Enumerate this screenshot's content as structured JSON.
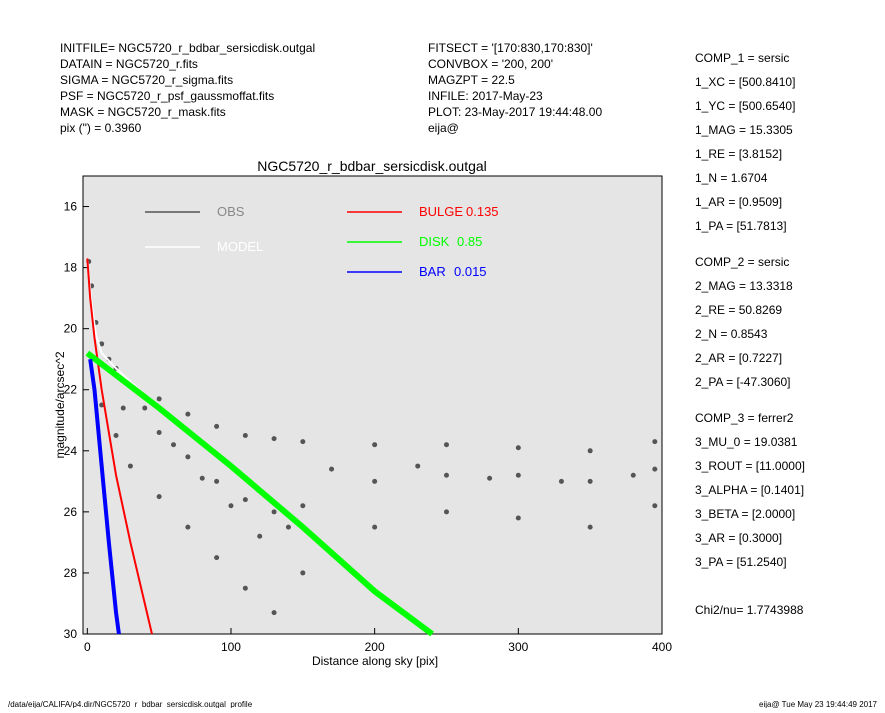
{
  "header": {
    "left": [
      "INITFILE= NGC5720_r_bdbar_sersicdisk.outgal",
      "DATAIN  = NGC5720_r.fits",
      "SIGMA   = NGC5720_r_sigma.fits",
      "PSF     = NGC5720_r_psf_gaussmoffat.fits",
      "MASK    = NGC5720_r_mask.fits",
      "pix (\") =  0.3960"
    ],
    "middle": [
      "FITSECT = '[170:830,170:830]'",
      "CONVBOX = '200, 200'",
      "MAGZPT  =              22.5",
      "INFILE: 2017-May-23",
      "PLOT: 23-May-2017 19:44:48.00",
      "eija@"
    ]
  },
  "params": [
    "COMP_1  = sersic",
    "1_XC    = [500.8410]",
    "1_YC    = [500.6540]",
    "1_MAG   = 15.3305",
    "1_RE    = [3.8152]",
    "1_N     = 1.6704",
    "1_AR    = [0.9509]",
    "1_PA    = [51.7813]",
    "COMP_2  = sersic",
    "2_MAG   = 13.3318",
    "2_RE    = 50.8269",
    "2_N     = 0.8543",
    "2_AR    = [0.7227]",
    "2_PA    = [-47.3060]",
    "COMP_3  = ferrer2",
    "3_MU_0  = 19.0381",
    "3_ROUT  = [11.0000]",
    "3_ALPHA = [0.1401]",
    "3_BETA  = [2.0000]",
    "3_AR    = [0.3000]",
    "3_PA    = [51.2540]",
    "Chi2/nu=      1.7743988"
  ],
  "footer": {
    "left": "/data/eija/CALIFA/p4.dir/NGC5720_r_bdbar_sersicdisk.outgal_profile",
    "right": "eija@  Tue May 23 19:44:49 2017"
  },
  "chart_data": {
    "type": "scatter",
    "title": "NGC5720_r_bdbar_sersicdisk.outgal",
    "x_label": "Distance along sky [pix]",
    "y_label": "magnitude/arcsec^2",
    "xlim": [
      -3,
      400
    ],
    "ylim": [
      30,
      15
    ],
    "xticks": [
      0,
      100,
      200,
      300,
      400
    ],
    "yticks": [
      16,
      18,
      20,
      22,
      24,
      26,
      28,
      30
    ],
    "series": [
      {
        "name": "OBS",
        "color": "#555555",
        "kind": "points",
        "x": [
          1,
          3,
          6,
          10,
          10,
          15,
          20,
          20,
          25,
          30,
          30,
          40,
          50,
          50,
          50,
          60,
          70,
          70,
          70,
          80,
          90,
          90,
          90,
          100,
          110,
          110,
          110,
          120,
          130,
          130,
          130,
          140,
          150,
          150,
          150,
          170,
          200,
          200,
          200,
          230,
          250,
          250,
          250,
          280,
          300,
          300,
          300,
          330,
          350,
          350,
          350,
          380,
          395,
          395,
          395
        ],
        "values": [
          17.8,
          18.6,
          19.8,
          20.5,
          22.5,
          21,
          21.3,
          23.5,
          22.6,
          21.8,
          24.5,
          22.6,
          22.3,
          23.4,
          25.5,
          23.8,
          22.8,
          24.2,
          26.5,
          24.9,
          23.2,
          25,
          27.5,
          25.8,
          23.5,
          25.6,
          28.5,
          26.8,
          23.6,
          26,
          29.3,
          26.5,
          23.7,
          25.8,
          28,
          24.6,
          23.8,
          25,
          26.5,
          24.5,
          23.8,
          24.8,
          26,
          24.9,
          23.9,
          24.8,
          26.2,
          25,
          24,
          25,
          26.5,
          24.8,
          23.7,
          24.6,
          25.8
        ]
      },
      {
        "name": "MODEL",
        "color": "#ffffff",
        "kind": "line",
        "x": [
          0,
          3,
          6,
          10,
          20,
          50,
          100,
          150,
          200,
          240
        ],
        "values": [
          17.7,
          19.2,
          20.2,
          20.8,
          21.3,
          22.6,
          24.5,
          26.5,
          28.6,
          30
        ]
      },
      {
        "name": "BULGE",
        "fraction": 0.135,
        "color": "#ff0000",
        "kind": "line",
        "x": [
          0,
          2,
          5,
          10,
          20,
          30,
          40,
          45
        ],
        "values": [
          17.7,
          19,
          20.3,
          22,
          24.8,
          27,
          29,
          30
        ]
      },
      {
        "name": "DISK",
        "fraction": 0.85,
        "color": "#00ff00",
        "kind": "line",
        "x": [
          0,
          50,
          100,
          150,
          200,
          240
        ],
        "values": [
          20.8,
          22.6,
          24.5,
          26.5,
          28.6,
          30
        ]
      },
      {
        "name": "BAR",
        "fraction": 0.015,
        "color": "#0000ff",
        "kind": "line",
        "x": [
          2,
          5,
          10,
          15,
          20,
          22
        ],
        "values": [
          21,
          22,
          24.5,
          27,
          29.3,
          30
        ]
      }
    ]
  }
}
